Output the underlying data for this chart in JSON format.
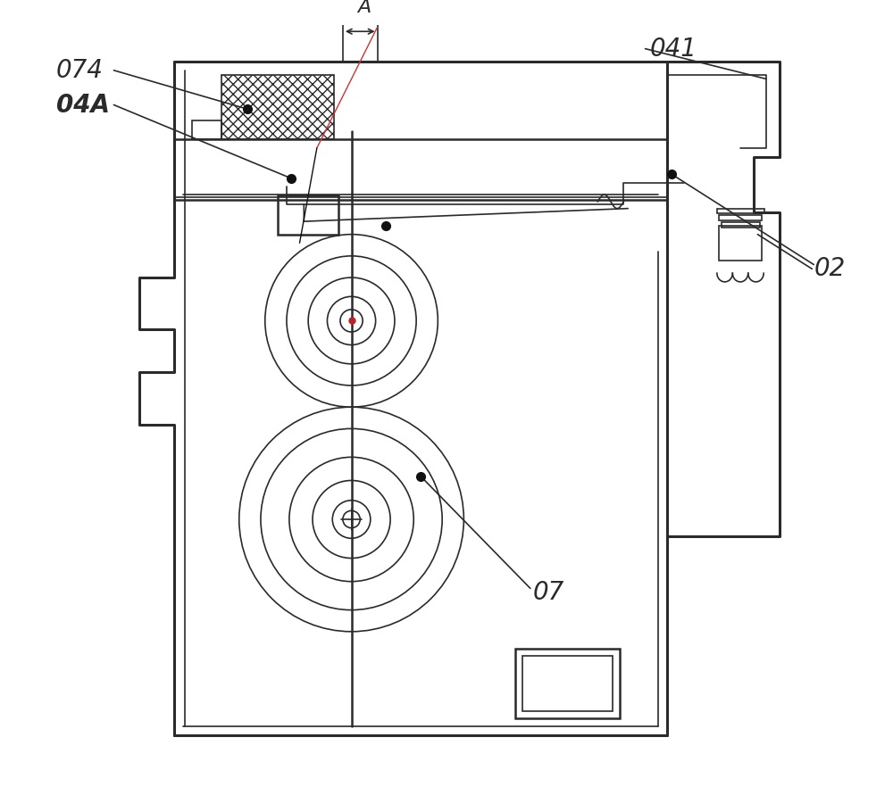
{
  "bg_color": "#ffffff",
  "line_color": "#2a2a2a",
  "label_fontsize": 20,
  "fig_width": 10.0,
  "fig_height": 8.82
}
